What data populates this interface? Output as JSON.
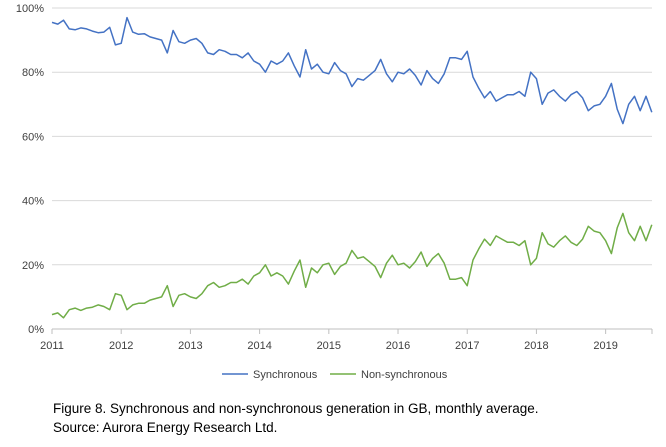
{
  "chart_data": {
    "type": "line",
    "title": "",
    "xlabel": "",
    "ylabel": "",
    "ylim": [
      0,
      100
    ],
    "y_ticks": [
      0,
      20,
      40,
      60,
      80,
      100
    ],
    "y_tick_labels": [
      "0%",
      "20%",
      "40%",
      "60%",
      "80%",
      "100%"
    ],
    "x_ticks": [
      2011,
      2012,
      2013,
      2014,
      2015,
      2016,
      2017,
      2018,
      2019
    ],
    "x_tick_labels": [
      "2011",
      "2012",
      "2013",
      "2014",
      "2015",
      "2016",
      "2017",
      "2018",
      "2019"
    ],
    "xlim": [
      2011,
      2019.67
    ],
    "grid": "horizontal",
    "legend_position": "bottom",
    "x_unit": "year (monthly points)",
    "series": [
      {
        "name": "Synchronous",
        "color": "#4472C4",
        "values": [
          95.5,
          95.0,
          96.2,
          93.5,
          93.2,
          93.8,
          93.5,
          92.8,
          92.3,
          92.5,
          94.0,
          88.5,
          89.0,
          97.0,
          92.5,
          91.8,
          92.0,
          91.0,
          90.5,
          90.0,
          86.0,
          93.0,
          89.5,
          89.0,
          90.0,
          90.5,
          89.0,
          86.0,
          85.5,
          87.0,
          86.5,
          85.5,
          85.5,
          84.5,
          86.0,
          83.5,
          82.5,
          80.0,
          83.5,
          82.5,
          83.5,
          86.0,
          82.0,
          78.5,
          87.0,
          81.0,
          82.5,
          80.0,
          79.5,
          83.0,
          80.5,
          79.5,
          75.5,
          78.0,
          77.5,
          79.0,
          80.5,
          84.0,
          79.5,
          77.0,
          80.0,
          79.5,
          81.0,
          79.0,
          76.0,
          80.5,
          78.0,
          76.5,
          79.5,
          84.5,
          84.5,
          84.0,
          86.5,
          78.5,
          75.0,
          72.0,
          74.0,
          71.0,
          72.0,
          73.0,
          73.0,
          74.0,
          72.5,
          80.0,
          78.0,
          70.0,
          73.5,
          74.5,
          72.5,
          71.0,
          73.0,
          74.0,
          72.0,
          68.0,
          69.5,
          70.0,
          72.5,
          76.5,
          68.5,
          64.0,
          70.0,
          72.5,
          68.0,
          72.5,
          67.5
        ]
      },
      {
        "name": "Non-synchronous",
        "color": "#70AD47",
        "values": [
          4.5,
          5.0,
          3.5,
          6.0,
          6.5,
          5.8,
          6.5,
          6.8,
          7.5,
          7.0,
          6.0,
          11.0,
          10.5,
          6.0,
          7.5,
          8.0,
          8.0,
          9.0,
          9.5,
          10.0,
          13.5,
          7.0,
          10.5,
          11.0,
          10.0,
          9.5,
          11.0,
          13.5,
          14.5,
          13.0,
          13.5,
          14.5,
          14.5,
          15.5,
          14.0,
          16.5,
          17.5,
          20.0,
          16.5,
          17.5,
          16.5,
          14.0,
          18.0,
          21.5,
          13.0,
          19.0,
          17.5,
          20.0,
          20.5,
          17.0,
          19.5,
          20.5,
          24.5,
          22.0,
          22.5,
          21.0,
          19.5,
          16.0,
          20.5,
          23.0,
          20.0,
          20.5,
          19.0,
          21.0,
          24.0,
          19.5,
          22.0,
          23.5,
          20.5,
          15.5,
          15.5,
          16.0,
          13.5,
          21.5,
          25.0,
          28.0,
          26.0,
          29.0,
          28.0,
          27.0,
          27.0,
          26.0,
          27.5,
          20.0,
          22.0,
          30.0,
          26.5,
          25.5,
          27.5,
          29.0,
          27.0,
          26.0,
          28.0,
          32.0,
          30.5,
          30.0,
          27.5,
          23.5,
          31.5,
          36.0,
          30.0,
          27.5,
          32.0,
          27.5,
          32.5
        ]
      }
    ]
  },
  "caption": {
    "line1": "Figure 8. Synchronous and non-synchronous generation in GB, monthly average.",
    "line2": "Source: Aurora Energy Research Ltd."
  }
}
